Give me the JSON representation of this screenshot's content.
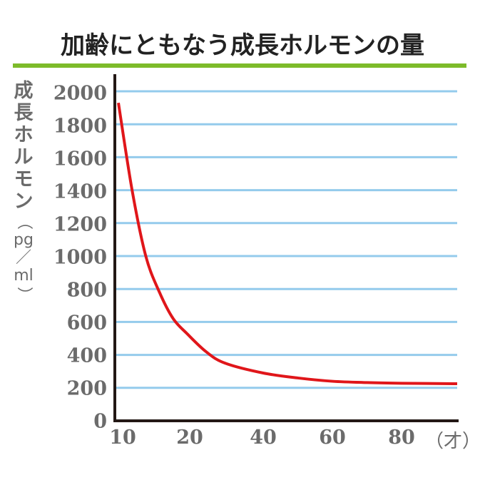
{
  "title": "加齢にともなう成長ホルモンの量",
  "colors": {
    "title_rule": "#7dbb2a",
    "gridline": "#94cbec",
    "axis": "#231815",
    "curve": "#e0161a",
    "label_text": "#6b6b6b"
  },
  "y_axis_label": {
    "main_chars": [
      "成",
      "長",
      "ホ",
      "ル",
      "モ",
      "ン"
    ],
    "open_paren": "（",
    "unit_top": "pg",
    "slash": "／",
    "unit_bottom": "ml",
    "close_paren": "）"
  },
  "x_axis_unit": "（才）",
  "chart_data": {
    "type": "line",
    "title": "加齢にともなう成長ホルモンの量",
    "xlabel": "（才）",
    "ylabel": "成長ホルモン（pg／ml）",
    "ylim": [
      0,
      2000
    ],
    "yticks": [
      0,
      200,
      400,
      600,
      800,
      1000,
      1200,
      1400,
      1600,
      1800,
      2000
    ],
    "ytick_labels": [
      "0",
      "200",
      "400",
      "600",
      "800",
      "1000",
      "1200",
      "1400",
      "1600",
      "1800",
      "2000"
    ],
    "xtick_labels": [
      "10",
      "20",
      "40",
      "60",
      "80"
    ],
    "grid": "horizontal",
    "legend": "none",
    "series": [
      {
        "name": "成長ホルモン",
        "x": [
          10,
          12,
          14,
          16,
          18,
          20,
          25,
          30,
          40,
          50,
          60,
          70,
          80,
          85
        ],
        "values": [
          1930,
          1400,
          1000,
          780,
          620,
          530,
          420,
          350,
          290,
          260,
          240,
          232,
          228,
          225
        ]
      }
    ]
  }
}
